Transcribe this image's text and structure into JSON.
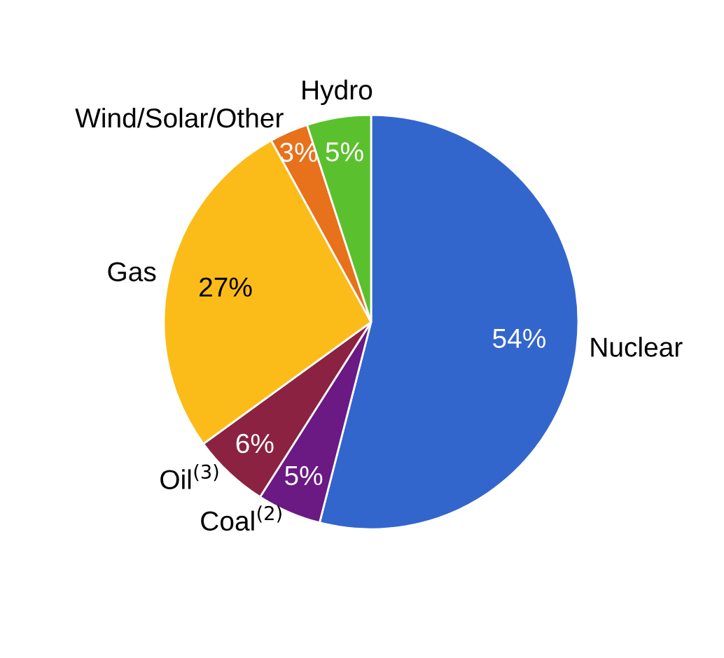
{
  "chart_data": {
    "type": "pie",
    "categories": [
      "Nuclear",
      "Coal$^{(2)}$",
      "Oil$^{(3)}$",
      "Gas",
      "Wind/Solar/Other",
      "Hydro"
    ],
    "values": [
      54,
      5,
      6,
      27,
      3,
      5
    ],
    "colors": [
      "#3366cc",
      "#6a1a82",
      "#8b2241",
      "#fbbc1a",
      "#e8711b",
      "#5bc02d"
    ],
    "value_labels": [
      "54%",
      "5%",
      "6%",
      "27%",
      "3%",
      "5%"
    ]
  }
}
